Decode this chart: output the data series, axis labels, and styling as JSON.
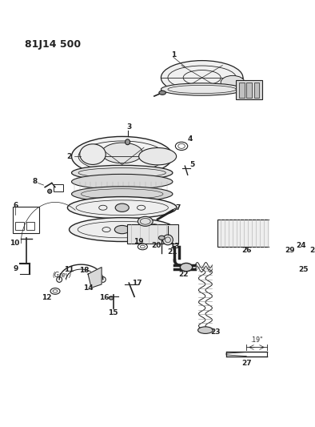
{
  "title": "81J14 500",
  "bg_color": "#ffffff",
  "line_color": "#222222",
  "figsize": [
    3.94,
    5.33
  ],
  "dpi": 100
}
